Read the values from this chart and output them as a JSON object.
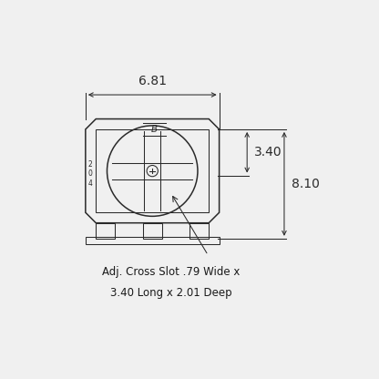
{
  "bg_color": "#f0f0f0",
  "line_color": "#2a2a2a",
  "text_color": "#1a1a1a",
  "title_line1": "Adj. Cross Slot .79 Wide x",
  "title_line2": "3.40 Long x 2.01 Deep",
  "dim_681": "6.81",
  "dim_340": "3.40",
  "dim_810": "8.10",
  "fig_width": 4.16,
  "fig_height": 4.16,
  "dpi": 100
}
